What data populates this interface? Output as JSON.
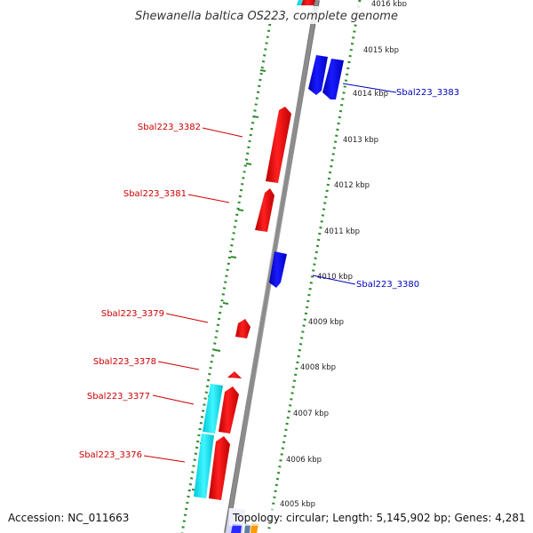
{
  "title": "Shewanella baltica OS223, complete genome",
  "accession": "Accession: NC_011663",
  "topology": "Topology: circular; Length: 5,145,902 bp; Genes: 4,281",
  "ticks": [
    "4016 kbp",
    "4015 kbp",
    "4014 kbp",
    "4013 kbp",
    "4012 kbp",
    "4011 kbp",
    "4010 kbp",
    "4009 kbp",
    "4008 kbp",
    "4007 kbp",
    "4006 kbp",
    "4005 kbp"
  ],
  "genes": [
    {
      "label": "Sbal223_3383",
      "strand": "reverse",
      "color": "#0000ee"
    },
    {
      "label": "Sbal223_3382",
      "strand": "forward",
      "color": "#ee0000"
    },
    {
      "label": "Sbal223_3381",
      "strand": "forward",
      "color": "#ee0000"
    },
    {
      "label": "Sbal223_3380",
      "strand": "reverse",
      "color": "#0000ee"
    },
    {
      "label": "Sbal223_3379",
      "strand": "forward",
      "color": "#ee0000"
    },
    {
      "label": "Sbal223_3378",
      "strand": "forward",
      "color": "#ee0000"
    },
    {
      "label": "Sbal223_3377",
      "strand": "forward",
      "color": "#ee0000"
    },
    {
      "label": "Sbal223_3376",
      "strand": "forward",
      "color": "#ee0000"
    }
  ],
  "colors": {
    "backbone": "#8c8c8c",
    "forward_cds": "#ee0000",
    "reverse_cds": "#0000ee",
    "feature_track": "#00e5ee",
    "tick_track": "#2e8b2e",
    "forward_label": "#cc0000",
    "reverse_label": "#0000bb"
  }
}
